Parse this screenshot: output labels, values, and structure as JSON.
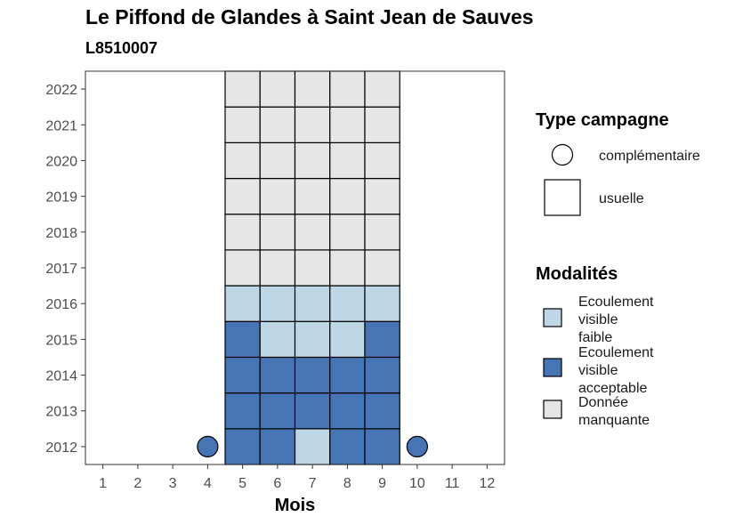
{
  "chart_data": {
    "type": "heatmap",
    "title": "Le Piffond de Glandes à Saint Jean de Sauves",
    "subtitle": "L8510007",
    "xlabel": "Mois",
    "ylabel": "",
    "x_ticks": [
      1,
      2,
      3,
      4,
      5,
      6,
      7,
      8,
      9,
      10,
      11,
      12
    ],
    "y_ticks": [
      2012,
      2013,
      2014,
      2015,
      2016,
      2017,
      2018,
      2019,
      2020,
      2021,
      2022
    ],
    "xlim": [
      0.5,
      12.5
    ],
    "ylim": [
      2011.5,
      2022.5
    ],
    "grid": false,
    "legend_position": "right",
    "legend_campagne": {
      "title": "Type campagne",
      "entries": [
        {
          "key": "complementaire",
          "label": "complémentaire",
          "shape": "circle"
        },
        {
          "key": "usuelle",
          "label": "usuelle",
          "shape": "square"
        }
      ]
    },
    "legend_modalites": {
      "title": "Modalités",
      "entries": [
        {
          "key": "faible",
          "lines": [
            "Ecoulement",
            "visible",
            "faible"
          ],
          "color": "#bdd7e7"
        },
        {
          "key": "acceptable",
          "lines": [
            "Ecoulement",
            "visible",
            "acceptable"
          ],
          "color": "#4575b4"
        },
        {
          "key": "manquante",
          "lines": [
            "Donnée",
            "manquante"
          ],
          "color": "#e6e6e6"
        }
      ]
    },
    "points": [
      {
        "year": 2012,
        "month": 4,
        "modalite": "acceptable",
        "campagne": "complementaire"
      },
      {
        "year": 2012,
        "month": 5,
        "modalite": "acceptable",
        "campagne": "usuelle"
      },
      {
        "year": 2012,
        "month": 6,
        "modalite": "acceptable",
        "campagne": "usuelle"
      },
      {
        "year": 2012,
        "month": 7,
        "modalite": "faible",
        "campagne": "usuelle"
      },
      {
        "year": 2012,
        "month": 8,
        "modalite": "acceptable",
        "campagne": "usuelle"
      },
      {
        "year": 2012,
        "month": 9,
        "modalite": "acceptable",
        "campagne": "usuelle"
      },
      {
        "year": 2012,
        "month": 10,
        "modalite": "acceptable",
        "campagne": "complementaire"
      },
      {
        "year": 2013,
        "month": 5,
        "modalite": "acceptable",
        "campagne": "usuelle"
      },
      {
        "year": 2013,
        "month": 6,
        "modalite": "acceptable",
        "campagne": "usuelle"
      },
      {
        "year": 2013,
        "month": 7,
        "modalite": "acceptable",
        "campagne": "usuelle"
      },
      {
        "year": 2013,
        "month": 8,
        "modalite": "acceptable",
        "campagne": "usuelle"
      },
      {
        "year": 2013,
        "month": 9,
        "modalite": "acceptable",
        "campagne": "usuelle"
      },
      {
        "year": 2014,
        "month": 5,
        "modalite": "acceptable",
        "campagne": "usuelle"
      },
      {
        "year": 2014,
        "month": 6,
        "modalite": "acceptable",
        "campagne": "usuelle"
      },
      {
        "year": 2014,
        "month": 7,
        "modalite": "acceptable",
        "campagne": "usuelle"
      },
      {
        "year": 2014,
        "month": 8,
        "modalite": "acceptable",
        "campagne": "usuelle"
      },
      {
        "year": 2014,
        "month": 9,
        "modalite": "acceptable",
        "campagne": "usuelle"
      },
      {
        "year": 2015,
        "month": 5,
        "modalite": "acceptable",
        "campagne": "usuelle"
      },
      {
        "year": 2015,
        "month": 6,
        "modalite": "faible",
        "campagne": "usuelle"
      },
      {
        "year": 2015,
        "month": 7,
        "modalite": "faible",
        "campagne": "usuelle"
      },
      {
        "year": 2015,
        "month": 8,
        "modalite": "faible",
        "campagne": "usuelle"
      },
      {
        "year": 2015,
        "month": 9,
        "modalite": "acceptable",
        "campagne": "usuelle"
      },
      {
        "year": 2016,
        "month": 5,
        "modalite": "faible",
        "campagne": "usuelle"
      },
      {
        "year": 2016,
        "month": 6,
        "modalite": "faible",
        "campagne": "usuelle"
      },
      {
        "year": 2016,
        "month": 7,
        "modalite": "faible",
        "campagne": "usuelle"
      },
      {
        "year": 2016,
        "month": 8,
        "modalite": "faible",
        "campagne": "usuelle"
      },
      {
        "year": 2016,
        "month": 9,
        "modalite": "faible",
        "campagne": "usuelle"
      },
      {
        "year": 2017,
        "month": 5,
        "modalite": "manquante",
        "campagne": "usuelle"
      },
      {
        "year": 2017,
        "month": 6,
        "modalite": "manquante",
        "campagne": "usuelle"
      },
      {
        "year": 2017,
        "month": 7,
        "modalite": "manquante",
        "campagne": "usuelle"
      },
      {
        "year": 2017,
        "month": 8,
        "modalite": "manquante",
        "campagne": "usuelle"
      },
      {
        "year": 2017,
        "month": 9,
        "modalite": "manquante",
        "campagne": "usuelle"
      },
      {
        "year": 2018,
        "month": 5,
        "modalite": "manquante",
        "campagne": "usuelle"
      },
      {
        "year": 2018,
        "month": 6,
        "modalite": "manquante",
        "campagne": "usuelle"
      },
      {
        "year": 2018,
        "month": 7,
        "modalite": "manquante",
        "campagne": "usuelle"
      },
      {
        "year": 2018,
        "month": 8,
        "modalite": "manquante",
        "campagne": "usuelle"
      },
      {
        "year": 2018,
        "month": 9,
        "modalite": "manquante",
        "campagne": "usuelle"
      },
      {
        "year": 2019,
        "month": 5,
        "modalite": "manquante",
        "campagne": "usuelle"
      },
      {
        "year": 2019,
        "month": 6,
        "modalite": "manquante",
        "campagne": "usuelle"
      },
      {
        "year": 2019,
        "month": 7,
        "modalite": "manquante",
        "campagne": "usuelle"
      },
      {
        "year": 2019,
        "month": 8,
        "modalite": "manquante",
        "campagne": "usuelle"
      },
      {
        "year": 2019,
        "month": 9,
        "modalite": "manquante",
        "campagne": "usuelle"
      },
      {
        "year": 2020,
        "month": 5,
        "modalite": "manquante",
        "campagne": "usuelle"
      },
      {
        "year": 2020,
        "month": 6,
        "modalite": "manquante",
        "campagne": "usuelle"
      },
      {
        "year": 2020,
        "month": 7,
        "modalite": "manquante",
        "campagne": "usuelle"
      },
      {
        "year": 2020,
        "month": 8,
        "modalite": "manquante",
        "campagne": "usuelle"
      },
      {
        "year": 2020,
        "month": 9,
        "modalite": "manquante",
        "campagne": "usuelle"
      },
      {
        "year": 2021,
        "month": 5,
        "modalite": "manquante",
        "campagne": "usuelle"
      },
      {
        "year": 2021,
        "month": 6,
        "modalite": "manquante",
        "campagne": "usuelle"
      },
      {
        "year": 2021,
        "month": 7,
        "modalite": "manquante",
        "campagne": "usuelle"
      },
      {
        "year": 2021,
        "month": 8,
        "modalite": "manquante",
        "campagne": "usuelle"
      },
      {
        "year": 2021,
        "month": 9,
        "modalite": "manquante",
        "campagne": "usuelle"
      },
      {
        "year": 2022,
        "month": 5,
        "modalite": "manquante",
        "campagne": "usuelle"
      },
      {
        "year": 2022,
        "month": 6,
        "modalite": "manquante",
        "campagne": "usuelle"
      },
      {
        "year": 2022,
        "month": 7,
        "modalite": "manquante",
        "campagne": "usuelle"
      },
      {
        "year": 2022,
        "month": 8,
        "modalite": "manquante",
        "campagne": "usuelle"
      },
      {
        "year": 2022,
        "month": 9,
        "modalite": "manquante",
        "campagne": "usuelle"
      }
    ]
  }
}
